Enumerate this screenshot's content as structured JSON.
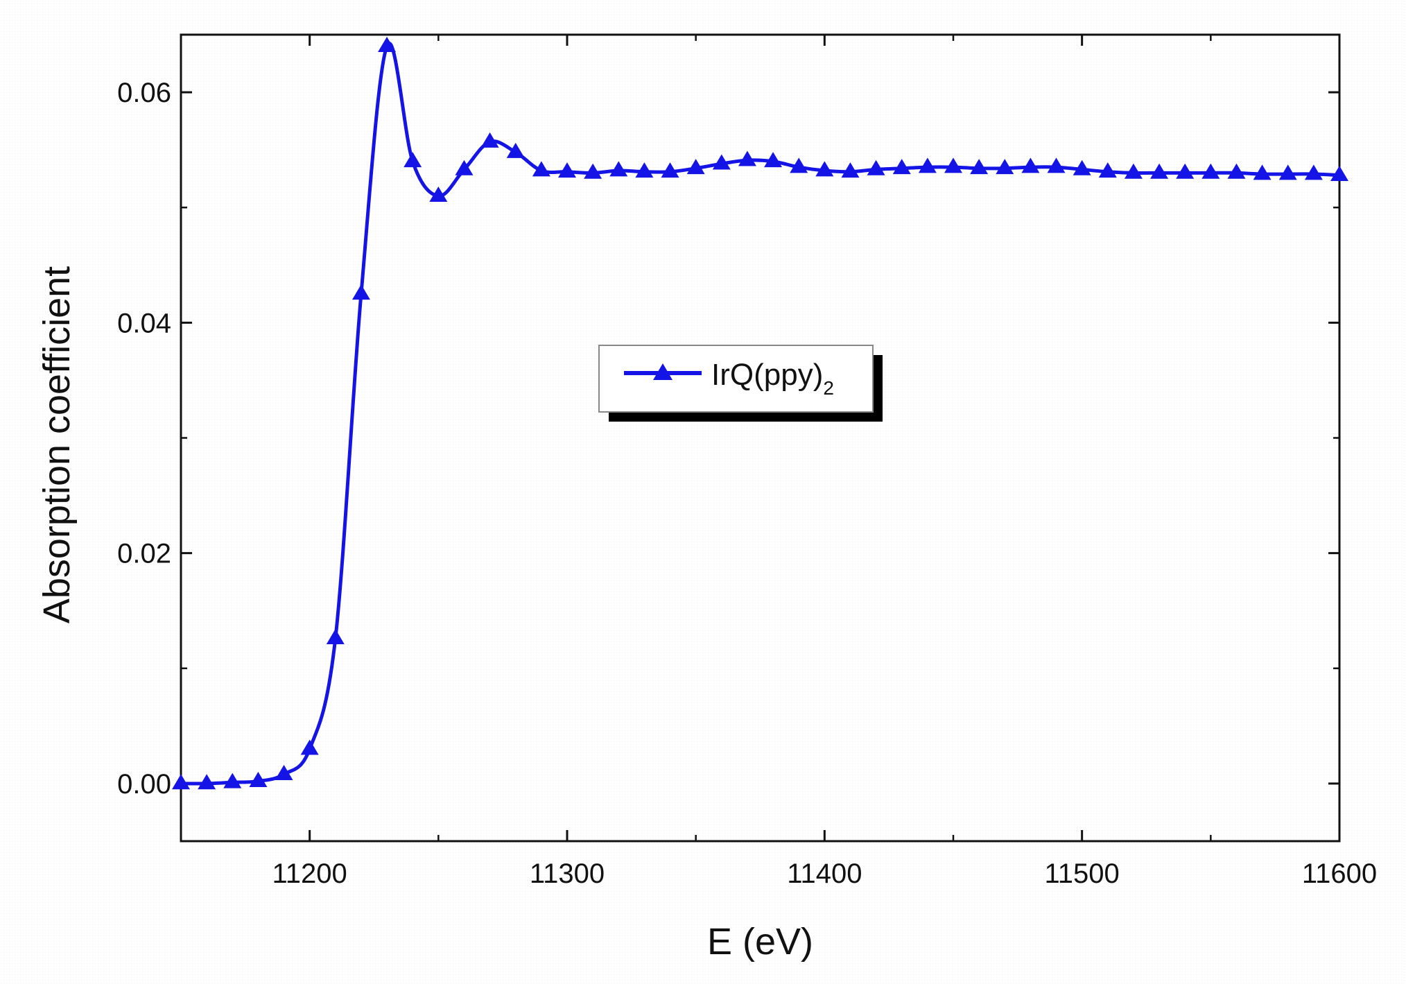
{
  "chart_data": {
    "type": "line",
    "xlabel": "E (eV)",
    "ylabel": "Absorption coefficient",
    "xlim": [
      11150,
      11600
    ],
    "ylim": [
      -0.005,
      0.065
    ],
    "xticks": [
      11200,
      11300,
      11400,
      11500,
      11600
    ],
    "xtick_labels": [
      "11200",
      "11300",
      "11400",
      "11500",
      "11600"
    ],
    "yticks": [
      0.0,
      0.02,
      0.04,
      0.06
    ],
    "ytick_labels": [
      "0.00",
      "0.02",
      "0.04",
      "0.06"
    ],
    "grid": false,
    "legend_position": "center",
    "series": [
      {
        "name": "IrQ(ppy)2",
        "color": "#1414e6",
        "marker": "triangle-up",
        "x": [
          11150,
          11160,
          11170,
          11180,
          11190,
          11200,
          11210,
          11220,
          11230,
          11240,
          11250,
          11260,
          11270,
          11280,
          11290,
          11300,
          11310,
          11320,
          11330,
          11340,
          11350,
          11360,
          11370,
          11380,
          11390,
          11400,
          11410,
          11420,
          11430,
          11440,
          11450,
          11460,
          11470,
          11480,
          11490,
          11500,
          11510,
          11520,
          11530,
          11540,
          11550,
          11560,
          11570,
          11580,
          11590,
          11600
        ],
        "y": [
          0.0,
          0.0,
          0.0001,
          0.0002,
          0.0008,
          0.003,
          0.0126,
          0.0425,
          0.064,
          0.054,
          0.051,
          0.0533,
          0.0557,
          0.0548,
          0.0532,
          0.0531,
          0.053,
          0.0532,
          0.0531,
          0.0531,
          0.0534,
          0.0538,
          0.0541,
          0.054,
          0.0535,
          0.0532,
          0.0531,
          0.0533,
          0.0534,
          0.0535,
          0.0535,
          0.0534,
          0.0534,
          0.0535,
          0.0535,
          0.0533,
          0.0531,
          0.053,
          0.053,
          0.053,
          0.053,
          0.053,
          0.0529,
          0.0529,
          0.0529,
          0.0528
        ]
      }
    ]
  },
  "legend": {
    "label_main": "IrQ(ppy)",
    "label_sub": "2"
  }
}
